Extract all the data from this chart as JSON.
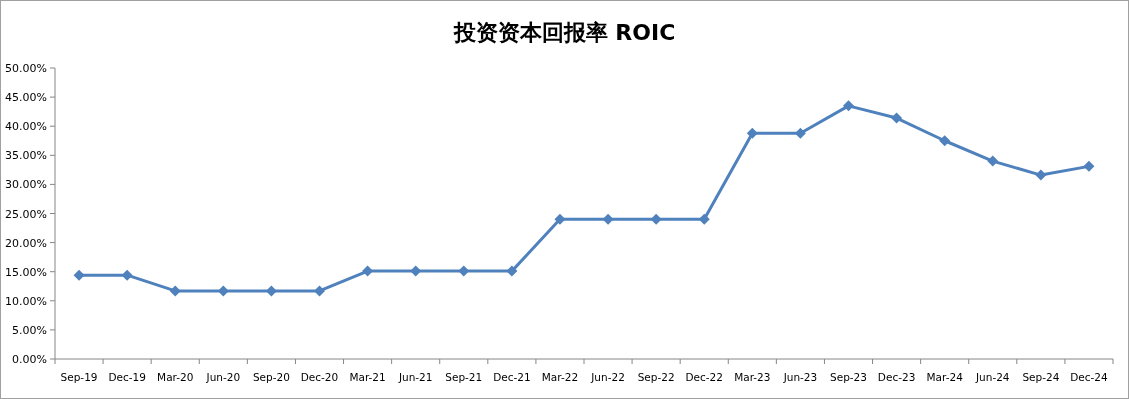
{
  "chart_data": {
    "type": "line",
    "title": "投资资本回报率 ROIC",
    "categories": [
      "Sep-19",
      "Dec-19",
      "Mar-20",
      "Jun-20",
      "Sep-20",
      "Dec-20",
      "Mar-21",
      "Jun-21",
      "Sep-21",
      "Dec-21",
      "Mar-22",
      "Jun-22",
      "Sep-22",
      "Dec-22",
      "Mar-23",
      "Jun-23",
      "Sep-23",
      "Dec-23",
      "Mar-24",
      "Jun-24",
      "Sep-24",
      "Dec-24"
    ],
    "series": [
      {
        "color": "#4f81bd",
        "values": [
          14.4,
          14.4,
          11.7,
          11.7,
          11.7,
          11.7,
          15.1,
          15.1,
          15.1,
          15.1,
          24.0,
          24.0,
          24.0,
          24.0,
          38.8,
          38.8,
          43.5,
          41.4,
          37.5,
          34.0,
          31.6,
          33.1
        ]
      }
    ],
    "ylim": [
      0,
      50
    ],
    "yticks": [
      {
        "value": 0,
        "label": "0.00%"
      },
      {
        "value": 5,
        "label": "5.00%"
      },
      {
        "value": 10,
        "label": "10.00%"
      },
      {
        "value": 15,
        "label": "15.00%"
      },
      {
        "value": 20,
        "label": "20.00%"
      },
      {
        "value": 25,
        "label": "25.00%"
      },
      {
        "value": 30,
        "label": "30.00%"
      },
      {
        "value": 35,
        "label": "35.00%"
      },
      {
        "value": 40,
        "label": "40.00%"
      },
      {
        "value": 45,
        "label": "45.00%"
      },
      {
        "value": 50,
        "label": "50.00%"
      }
    ],
    "grid": false,
    "marker": "diamond",
    "line_style": "solid"
  }
}
